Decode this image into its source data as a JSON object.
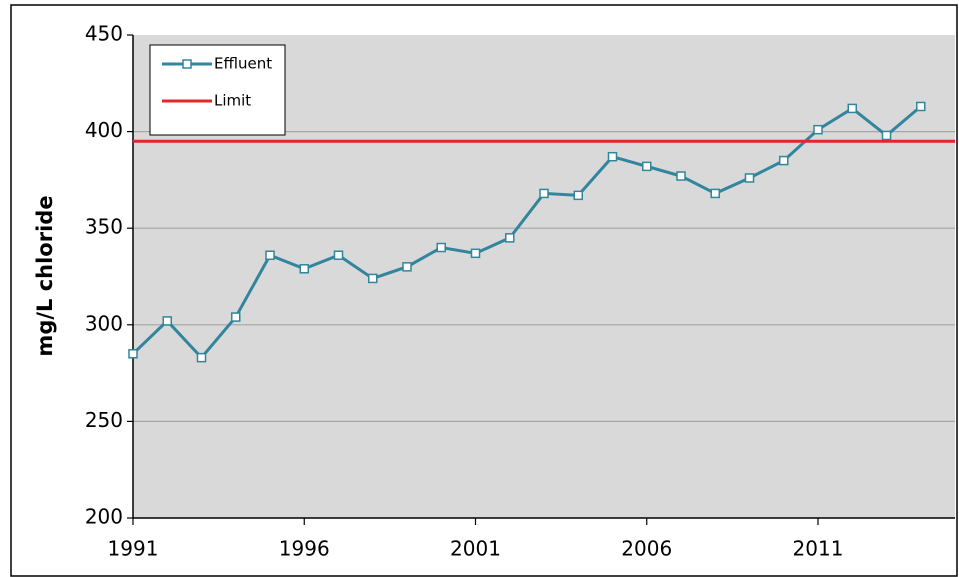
{
  "chart_data": {
    "type": "line",
    "y_label": "mg/L chloride",
    "x": [
      1991,
      1992,
      1993,
      1994,
      1995,
      1996,
      1997,
      1998,
      1999,
      2000,
      2001,
      2002,
      2003,
      2004,
      2005,
      2006,
      2007,
      2008,
      2009,
      2010,
      2011,
      2012,
      2013,
      2014
    ],
    "series": [
      {
        "name": "Effluent",
        "color": "#31859c",
        "values": [
          285,
          302,
          283,
          304,
          336,
          329,
          336,
          324,
          330,
          340,
          337,
          345,
          368,
          367,
          387,
          382,
          377,
          368,
          376,
          385,
          401,
          412,
          398,
          413
        ]
      },
      {
        "name": "Limit",
        "color": "#e3262b",
        "value": 395
      }
    ],
    "xlim": [
      1991,
      2015
    ],
    "xticks": [
      1991,
      1996,
      2001,
      2006,
      2011
    ],
    "ylim": [
      200,
      450
    ],
    "yticks": [
      200,
      250,
      300,
      350,
      400,
      450
    ],
    "grid": true,
    "legend": "upper left"
  }
}
